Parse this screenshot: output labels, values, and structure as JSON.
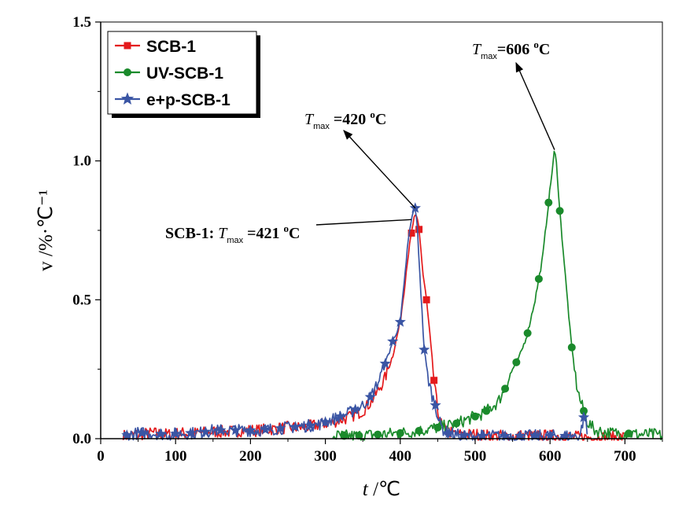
{
  "chart_data": {
    "type": "line",
    "xlabel": {
      "italic": "t",
      "rest": " /℃"
    },
    "ylabel": "v /%·℃⁻¹",
    "xlim": [
      0,
      750
    ],
    "ylim": [
      0,
      1.5
    ],
    "x_ticks": [
      "0",
      "100",
      "200",
      "300",
      "400",
      "500",
      "600",
      "700"
    ],
    "x_tick_values": [
      0,
      100,
      200,
      300,
      400,
      500,
      600,
      700
    ],
    "y_ticks": [
      "0.0",
      "0.5",
      "1.0",
      "1.5"
    ],
    "y_tick_values": [
      0,
      0.5,
      1.0,
      1.5
    ],
    "grid": false,
    "legend_placement": "top-left",
    "series": [
      {
        "name": "SCB-1",
        "color": "#e41a1c",
        "marker": "square",
        "x": [
          30,
          50,
          70,
          90,
          110,
          130,
          150,
          170,
          190,
          210,
          230,
          250,
          270,
          290,
          310,
          330,
          350,
          360,
          370,
          380,
          390,
          400,
          405,
          410,
          415,
          418,
          421,
          424,
          427,
          430,
          435,
          440,
          445,
          450,
          455,
          460,
          470,
          480,
          500,
          520,
          550,
          580,
          610,
          640,
          670,
          700
        ],
        "y": [
          0.01,
          0.015,
          0.02,
          0.015,
          0.02,
          0.02,
          0.025,
          0.025,
          0.03,
          0.03,
          0.035,
          0.04,
          0.04,
          0.05,
          0.06,
          0.075,
          0.1,
          0.13,
          0.17,
          0.22,
          0.3,
          0.42,
          0.53,
          0.65,
          0.74,
          0.79,
          0.8,
          0.78,
          0.7,
          0.6,
          0.5,
          0.36,
          0.21,
          0.1,
          0.05,
          0.03,
          0.02,
          0.015,
          0.015,
          0.01,
          0.01,
          0.01,
          0.01,
          0.005,
          0.005,
          0.005
        ],
        "marker_x": [
          415,
          425,
          435,
          445
        ]
      },
      {
        "name": "UV-SCB-1",
        "color": "#1a8a2b",
        "marker": "circle",
        "x": [
          310,
          340,
          370,
          400,
          430,
          450,
          470,
          490,
          510,
          530,
          540,
          550,
          560,
          570,
          580,
          590,
          598,
          603,
          606,
          609,
          613,
          620,
          628,
          635,
          640,
          645,
          650,
          660,
          680,
          700,
          720,
          740,
          750
        ],
        "y": [
          0.01,
          0.01,
          0.015,
          0.02,
          0.03,
          0.04,
          0.05,
          0.07,
          0.09,
          0.13,
          0.18,
          0.25,
          0.3,
          0.38,
          0.5,
          0.65,
          0.85,
          0.97,
          1.04,
          0.98,
          0.82,
          0.6,
          0.35,
          0.2,
          0.14,
          0.1,
          0.06,
          0.03,
          0.02,
          0.02,
          0.015,
          0.015,
          0.01
        ],
        "marker_x": [
          325,
          345,
          370,
          400,
          425,
          450,
          475,
          500,
          515,
          540,
          555,
          570,
          585,
          598,
          613,
          629,
          645,
          705
        ]
      },
      {
        "name": "e+p-SCB-1",
        "color": "#3a55a4",
        "marker": "star",
        "x": [
          30,
          50,
          70,
          90,
          110,
          130,
          150,
          170,
          190,
          210,
          230,
          250,
          270,
          290,
          310,
          330,
          350,
          360,
          370,
          380,
          390,
          400,
          405,
          410,
          415,
          418,
          420,
          423,
          427,
          432,
          437,
          442,
          447,
          452,
          458,
          465,
          480,
          500,
          530,
          560,
          600,
          640,
          646,
          650
        ],
        "y": [
          0.01,
          0.02,
          0.02,
          0.015,
          0.02,
          0.02,
          0.03,
          0.03,
          0.03,
          0.03,
          0.035,
          0.04,
          0.045,
          0.05,
          0.07,
          0.09,
          0.12,
          0.15,
          0.2,
          0.27,
          0.35,
          0.42,
          0.55,
          0.7,
          0.79,
          0.82,
          0.83,
          0.75,
          0.55,
          0.32,
          0.22,
          0.16,
          0.12,
          0.06,
          0.03,
          0.02,
          0.01,
          0.01,
          0.01,
          0.01,
          0.01,
          0.01,
          0.09,
          0.01
        ],
        "marker_x": [
          35,
          55,
          80,
          100,
          120,
          140,
          160,
          180,
          200,
          220,
          240,
          260,
          280,
          300,
          320,
          340,
          360,
          380,
          390,
          400,
          420,
          432,
          447,
          465,
          485,
          510,
          540,
          560,
          580,
          600,
          620,
          645
        ]
      }
    ],
    "annotations": [
      {
        "id": "scb1",
        "prefix": "SCB-1: ",
        "sym": "T",
        "sub": "max",
        "suffix": " =421 ",
        "sup": "o",
        "unit": "C",
        "point": [
          421,
          0.8
        ]
      },
      {
        "id": "ep",
        "prefix": "",
        "sym": "T",
        "sub": "max",
        "suffix": " =420 ",
        "sup": "o",
        "unit": "C",
        "point": [
          420,
          0.83
        ]
      },
      {
        "id": "uv",
        "prefix": "",
        "sym": "T",
        "sub": "max",
        "suffix": "=606 ",
        "sup": "o",
        "unit": "C",
        "point": [
          606,
          1.04
        ]
      }
    ]
  }
}
